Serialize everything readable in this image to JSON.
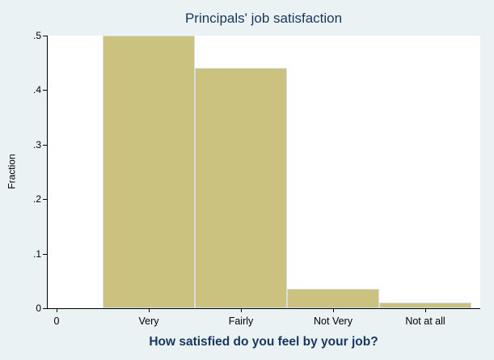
{
  "chart_data": {
    "type": "bar",
    "style": "histogram",
    "title": "Principals' job satisfaction",
    "xlabel": "How satisfied do you feel by your job?",
    "ylabel": "Fraction",
    "categories": [
      "Very",
      "Fairly",
      "Not Very",
      "Not at all"
    ],
    "values": [
      0.5,
      0.44,
      0.035,
      0.01
    ],
    "ylim": [
      0,
      0.5
    ],
    "yticks": [
      0,
      0.1,
      0.2,
      0.3,
      0.4,
      0.5
    ],
    "ytick_labels": [
      "0",
      ".1",
      ".2",
      ".3",
      ".4",
      ".5"
    ],
    "xtick_labels": [
      "0",
      "Very",
      "Fairly",
      "Not Very",
      "Not at all"
    ],
    "grid": false,
    "legend": false,
    "colors": {
      "bar_fill": "#cac27e",
      "bar_outline": "#d6dfe0",
      "background": "#eaf2f3",
      "plot_background": "#ffffff",
      "axis": "#000000",
      "title_color": "#17375e",
      "xlabel_color": "#17375e"
    }
  }
}
